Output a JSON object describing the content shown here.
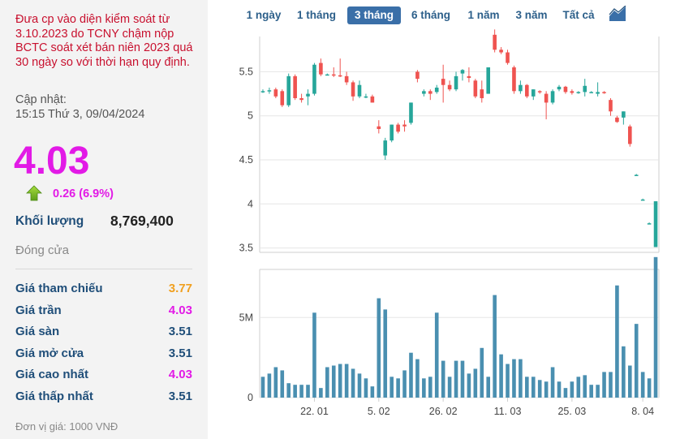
{
  "stock_info": {
    "notice": "Đưa cp vào diện kiểm soát từ 3.10.2023 do TCNY chậm nộp BCTC soát xét bán niên 2023 quá 30 ngày so với thời hạn quy định.",
    "updated_label": "Cập nhật:",
    "updated_time": "15:15 Thứ 3, 09/04/2024",
    "price": "4.03",
    "change": "0.26 (6.9%)",
    "change_direction": "up",
    "volume_label": "Khối lượng",
    "volume_value": "8,769,400",
    "status": "Đóng cửa",
    "stats": [
      {
        "label": "Giá tham chiếu",
        "value": "3.77",
        "color": "#f0a020"
      },
      {
        "label": "Giá trần",
        "value": "4.03",
        "color": "#e21ae6"
      },
      {
        "label": "Giá sàn",
        "value": "3.51",
        "color": "#1f4e79"
      },
      {
        "label": "Giá mở cửa",
        "value": "3.51",
        "color": "#1f4e79"
      },
      {
        "label": "Giá cao nhất",
        "value": "4.03",
        "color": "#e21ae6"
      },
      {
        "label": "Giá thấp nhất",
        "value": "3.51",
        "color": "#1f4e79"
      }
    ],
    "unit_note": "Đơn vị giá: 1000 VNĐ"
  },
  "range_tabs": [
    {
      "label": "1 ngày",
      "active": false
    },
    {
      "label": "1 tháng",
      "active": false
    },
    {
      "label": "3 tháng",
      "active": true
    },
    {
      "label": "6 tháng",
      "active": false
    },
    {
      "label": "1 năm",
      "active": false
    },
    {
      "label": "3 năm",
      "active": false
    },
    {
      "label": "Tất cả",
      "active": false
    }
  ],
  "chart_type_icon": "area-chart-icon",
  "colors": {
    "up": "#26a69a",
    "down": "#ef5350",
    "volume": "#4a8fb0",
    "grid": "#e6e6e6"
  },
  "chart_data": {
    "type": "candlestick",
    "price_ticks": [
      "5.5",
      "5",
      "4.5",
      "4",
      "3.5"
    ],
    "volume_ticks": [
      "5M",
      "0"
    ],
    "x_tick_labels": [
      "22. 01",
      "5. 02",
      "26. 02",
      "11. 03",
      "25. 03",
      "8. 04"
    ],
    "price_ylim": [
      3.45,
      5.9
    ],
    "volume_ylim": [
      0,
      8000000
    ],
    "candles": [
      [
        5.28,
        5.3,
        5.26,
        5.28
      ],
      [
        5.28,
        5.32,
        5.25,
        5.29
      ],
      [
        5.3,
        5.32,
        5.2,
        5.22
      ],
      [
        5.28,
        5.3,
        5.1,
        5.12
      ],
      [
        5.12,
        5.48,
        5.1,
        5.45
      ],
      [
        5.45,
        5.47,
        5.18,
        5.2
      ],
      [
        5.2,
        5.25,
        5.15,
        5.18
      ],
      [
        5.22,
        5.3,
        5.12,
        5.25
      ],
      [
        5.25,
        5.6,
        5.23,
        5.58
      ],
      [
        5.6,
        5.65,
        5.45,
        5.47
      ],
      [
        5.47,
        5.48,
        5.46,
        5.47
      ],
      [
        5.47,
        5.55,
        5.44,
        5.46
      ],
      [
        5.46,
        5.65,
        5.44,
        5.45
      ],
      [
        5.45,
        5.5,
        5.35,
        5.38
      ],
      [
        5.38,
        5.4,
        5.17,
        5.22
      ],
      [
        5.22,
        5.4,
        5.2,
        5.35
      ],
      [
        5.22,
        5.25,
        5.2,
        5.22
      ],
      [
        5.22,
        5.24,
        5.15,
        5.15
      ],
      [
        4.88,
        4.95,
        4.8,
        4.85
      ],
      [
        4.55,
        4.75,
        4.5,
        4.72
      ],
      [
        4.72,
        4.9,
        4.7,
        4.9
      ],
      [
        4.9,
        4.92,
        4.8,
        4.82
      ],
      [
        4.9,
        4.95,
        4.82,
        4.88
      ],
      [
        4.92,
        5.15,
        4.9,
        5.15
      ],
      [
        5.5,
        5.52,
        5.38,
        5.42
      ],
      [
        5.25,
        5.3,
        5.22,
        5.28
      ],
      [
        5.28,
        5.3,
        5.18,
        5.25
      ],
      [
        5.27,
        5.35,
        5.25,
        5.32
      ],
      [
        5.42,
        5.58,
        5.15,
        5.35
      ],
      [
        5.35,
        5.4,
        5.28,
        5.3
      ],
      [
        5.3,
        5.5,
        5.28,
        5.45
      ],
      [
        5.48,
        5.53,
        5.4,
        5.52
      ],
      [
        5.45,
        5.55,
        5.38,
        5.43
      ],
      [
        5.4,
        5.42,
        5.2,
        5.22
      ],
      [
        5.3,
        5.4,
        5.15,
        5.2
      ],
      [
        5.25,
        5.55,
        5.25,
        5.55
      ],
      [
        5.92,
        5.98,
        5.72,
        5.75
      ],
      [
        5.75,
        5.78,
        5.7,
        5.72
      ],
      [
        5.72,
        5.75,
        5.58,
        5.6
      ],
      [
        5.55,
        5.57,
        5.25,
        5.28
      ],
      [
        5.28,
        5.4,
        5.25,
        5.35
      ],
      [
        5.35,
        5.36,
        5.2,
        5.22
      ],
      [
        5.22,
        5.3,
        5.18,
        5.3
      ],
      [
        5.28,
        5.29,
        5.25,
        5.27
      ],
      [
        5.25,
        5.28,
        4.96,
        5.15
      ],
      [
        5.15,
        5.3,
        5.13,
        5.28
      ],
      [
        5.3,
        5.35,
        5.28,
        5.33
      ],
      [
        5.33,
        5.34,
        5.25,
        5.27
      ],
      [
        5.28,
        5.3,
        5.24,
        5.26
      ],
      [
        5.26,
        5.28,
        5.25,
        5.27
      ],
      [
        5.27,
        5.42,
        5.22,
        5.34
      ],
      [
        5.27,
        5.28,
        5.26,
        5.27
      ],
      [
        5.25,
        5.38,
        5.22,
        5.27
      ],
      [
        5.27,
        5.28,
        5.25,
        5.26
      ],
      [
        5.18,
        5.2,
        5.0,
        5.05
      ],
      [
        4.98,
        5.0,
        4.92,
        4.93
      ],
      [
        4.98,
        5.05,
        4.9,
        5.05
      ],
      [
        4.88,
        4.9,
        4.65,
        4.68
      ],
      [
        4.33,
        4.34,
        4.32,
        4.33
      ],
      [
        4.05,
        4.06,
        4.04,
        4.05
      ],
      [
        3.78,
        3.79,
        3.77,
        3.78
      ],
      [
        3.51,
        4.03,
        3.51,
        4.03
      ]
    ],
    "volumes": [
      1300000,
      1500000,
      1900000,
      1700000,
      900000,
      800000,
      800000,
      800000,
      5300000,
      600000,
      1900000,
      2000000,
      2100000,
      2100000,
      1800000,
      1500000,
      1200000,
      700000,
      6200000,
      5500000,
      1300000,
      1200000,
      1700000,
      2800000,
      2400000,
      1200000,
      1300000,
      5300000,
      2300000,
      1300000,
      2300000,
      2300000,
      1500000,
      1800000,
      3100000,
      1300000,
      6400000,
      2700000,
      2100000,
      2400000,
      2400000,
      1300000,
      1300000,
      1100000,
      1000000,
      1900000,
      1000000,
      600000,
      1000000,
      1300000,
      1400000,
      800000,
      800000,
      1600000,
      1600000,
      7000000,
      3200000,
      2000000,
      4600000,
      1600000,
      1200000,
      8769400
    ]
  }
}
